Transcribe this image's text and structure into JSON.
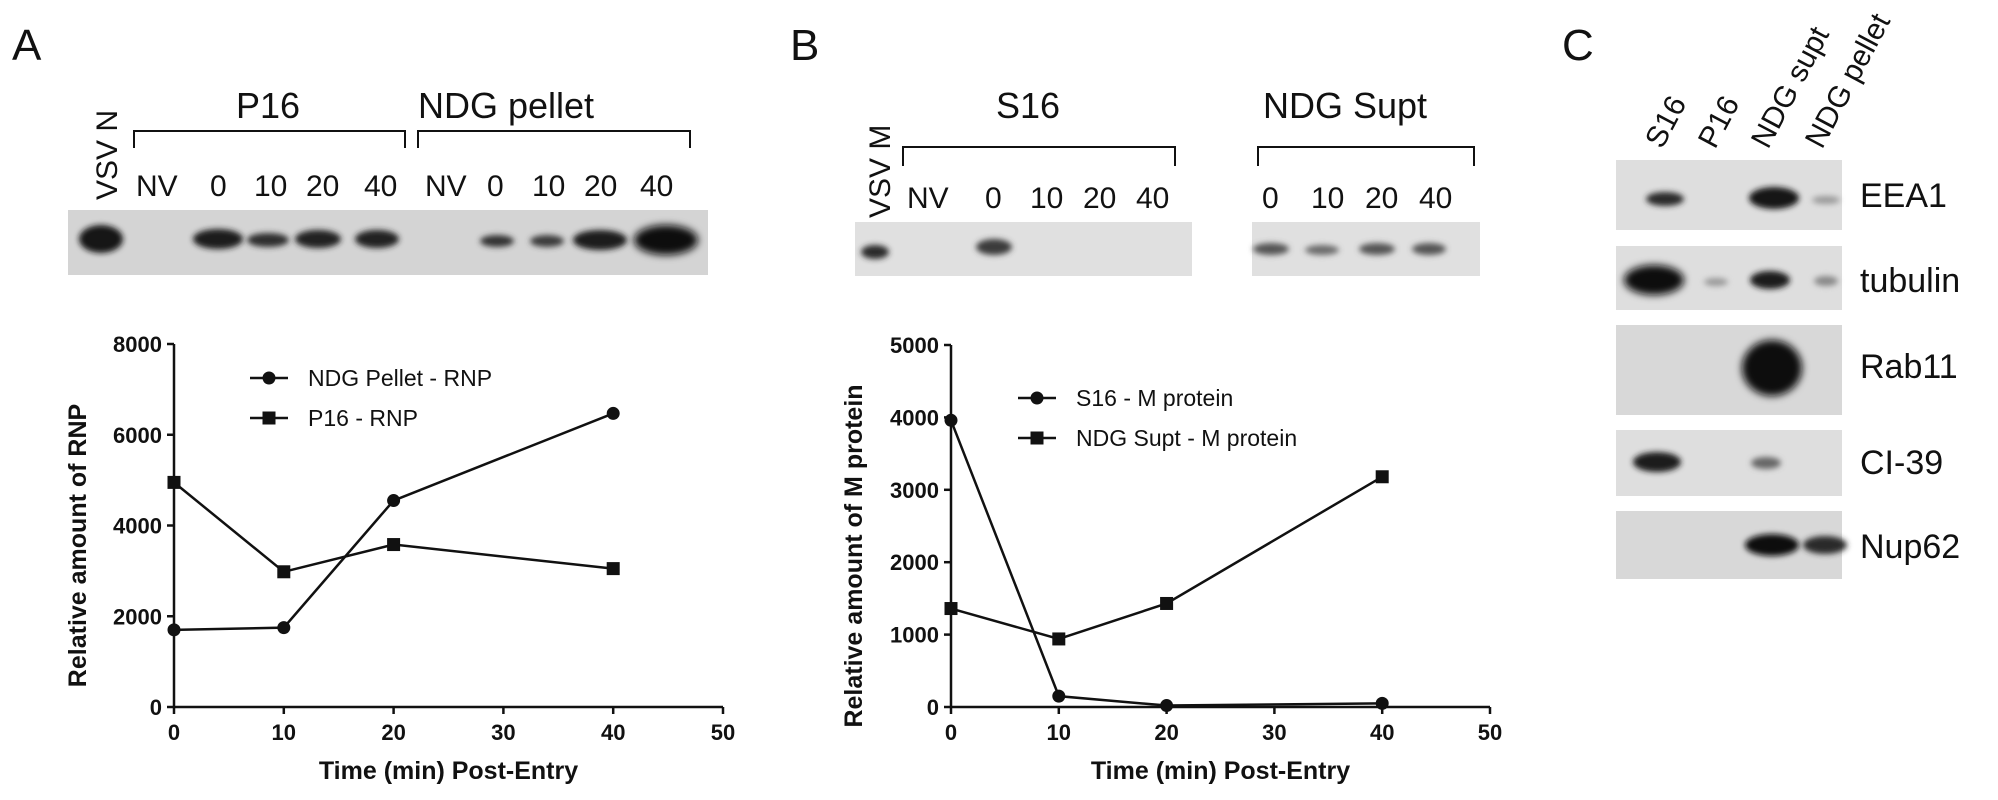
{
  "panels": {
    "A": {
      "letter": "A",
      "blot": {
        "ref_lane": "VSV N",
        "groups": [
          {
            "label": "P16",
            "lanes": [
              "NV",
              "0",
              "10",
              "20",
              "40"
            ]
          },
          {
            "label": "NDG pellet",
            "lanes": [
              "NV",
              "0",
              "10",
              "20",
              "40"
            ]
          }
        ]
      }
    },
    "B": {
      "letter": "B",
      "blot": {
        "ref_lane": "VSV M",
        "groups": [
          {
            "label": "S16",
            "lanes": [
              "NV",
              "0",
              "10",
              "20",
              "40"
            ]
          },
          {
            "label": "NDG Supt",
            "lanes": [
              "0",
              "10",
              "20",
              "40"
            ]
          }
        ]
      }
    },
    "C": {
      "letter": "C",
      "columns": [
        "S16",
        "P16",
        "NDG supt",
        "NDG pellet"
      ],
      "rows": [
        "EEA1",
        "tubulin",
        "Rab11",
        "CI-39",
        "Nup62"
      ]
    }
  },
  "chart_data": [
    {
      "type": "line",
      "xlabel": "Time (min) Post-Entry",
      "ylabel": "Relative amount of RNP",
      "xlim": [
        0,
        50
      ],
      "ylim": [
        0,
        8000
      ],
      "xticks": [
        0,
        10,
        20,
        30,
        40,
        50
      ],
      "yticks": [
        0,
        2000,
        4000,
        6000,
        8000
      ],
      "legend_position": "top-left",
      "series": [
        {
          "name": "NDG Pellet - RNP",
          "marker": "circle",
          "x": [
            0,
            10,
            20,
            40
          ],
          "y": [
            1700,
            1750,
            4550,
            6470
          ]
        },
        {
          "name": "P16 - RNP",
          "marker": "square",
          "x": [
            0,
            10,
            20,
            40
          ],
          "y": [
            4950,
            2980,
            3580,
            3050
          ]
        }
      ]
    },
    {
      "type": "line",
      "xlabel": "Time (min) Post-Entry",
      "ylabel": "Relative amount of M protein",
      "xlim": [
        0,
        50
      ],
      "ylim": [
        0,
        5000
      ],
      "xticks": [
        0,
        10,
        20,
        30,
        40,
        50
      ],
      "yticks": [
        0,
        1000,
        2000,
        3000,
        4000,
        5000
      ],
      "legend_position": "top-left",
      "series": [
        {
          "name": "S16 - M protein",
          "marker": "circle",
          "x": [
            0,
            10,
            20,
            40
          ],
          "y": [
            3960,
            150,
            20,
            50
          ]
        },
        {
          "name": "NDG Supt - M protein",
          "marker": "square",
          "x": [
            0,
            10,
            20,
            40
          ],
          "y": [
            1360,
            940,
            1430,
            3180
          ]
        }
      ]
    }
  ]
}
